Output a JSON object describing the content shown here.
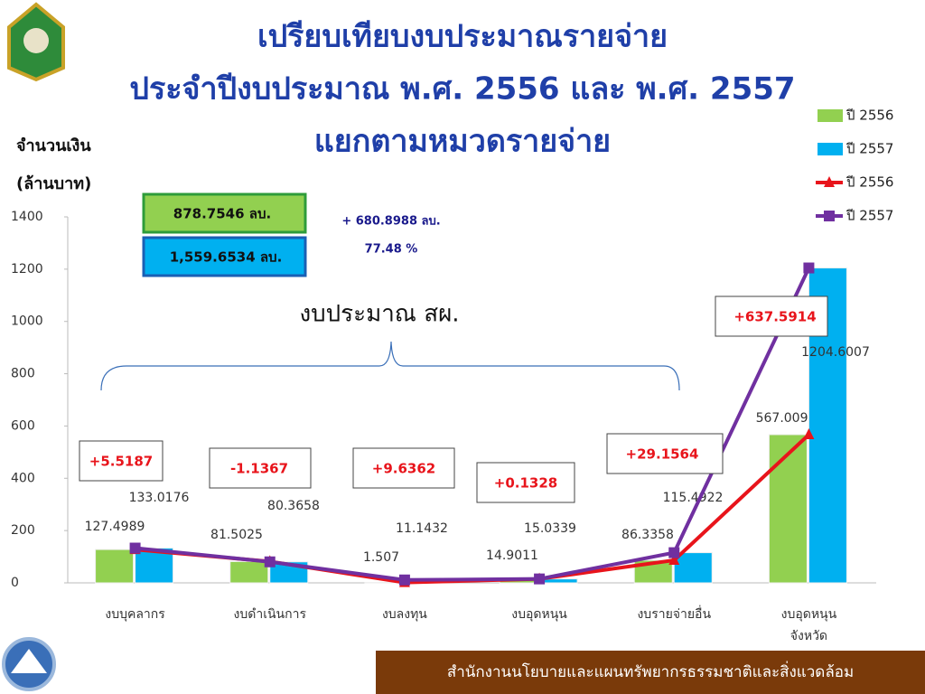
{
  "chart_data": {
    "type": "bar",
    "title": [
      "เปรียบเทียบงบประมาณรายจ่าย",
      "ประจำปีงบประมาณ พ.ศ. 2556 และ พ.ศ. 2557",
      "แยกตามหมวดรายจ่าย"
    ],
    "y_label": [
      "จำนวนเงิน",
      "(ล้านบาท)"
    ],
    "categories": [
      "งบบุคลากร",
      "งบดำเนินการ",
      "งบลงทุน",
      "งบอุดหนุน",
      "งบรายจ่ายอื่น",
      "งบอุดหนุน\nจังหวัด"
    ],
    "series": [
      {
        "name": "ปี 2556",
        "type": "bar",
        "color": "#92d050",
        "values": [
          127.4989,
          81.5025,
          1.507,
          14.9011,
          86.3358,
          567.0093
        ]
      },
      {
        "name": "ปี 2557",
        "type": "bar",
        "color": "#00b0f0",
        "values": [
          133.0176,
          80.3658,
          11.1432,
          15.0339,
          115.4922,
          1204.6007
        ]
      },
      {
        "name": "ปี 2556",
        "type": "line",
        "color": "#e8141b",
        "values": [
          127.4989,
          81.5025,
          1.507,
          14.9011,
          86.3358,
          567.0093
        ]
      },
      {
        "name": "ปี 2557",
        "type": "line",
        "color": "#7030a0",
        "values": [
          133.0176,
          80.3658,
          11.1432,
          15.0339,
          115.4922,
          1204.6007
        ]
      }
    ],
    "ylim": [
      0,
      1400
    ],
    "yticks": [
      0,
      200,
      400,
      600,
      800,
      1000,
      1200,
      1400
    ],
    "annotations": [
      "+5.5187",
      "-1.1367",
      "+9.6362",
      "+0.1328",
      "+29.1564",
      "+637.5914",
      "878.7546 ลบ.",
      "1,559.6534 ลบ.",
      "+ 680.8988 ลบ.",
      "77.48 %",
      "งบประมาณ สผ."
    ]
  },
  "footer": "สำนักงานนโยบายและแผนทรัพยากรธรรมชาติและสิ่งแวดล้อม"
}
